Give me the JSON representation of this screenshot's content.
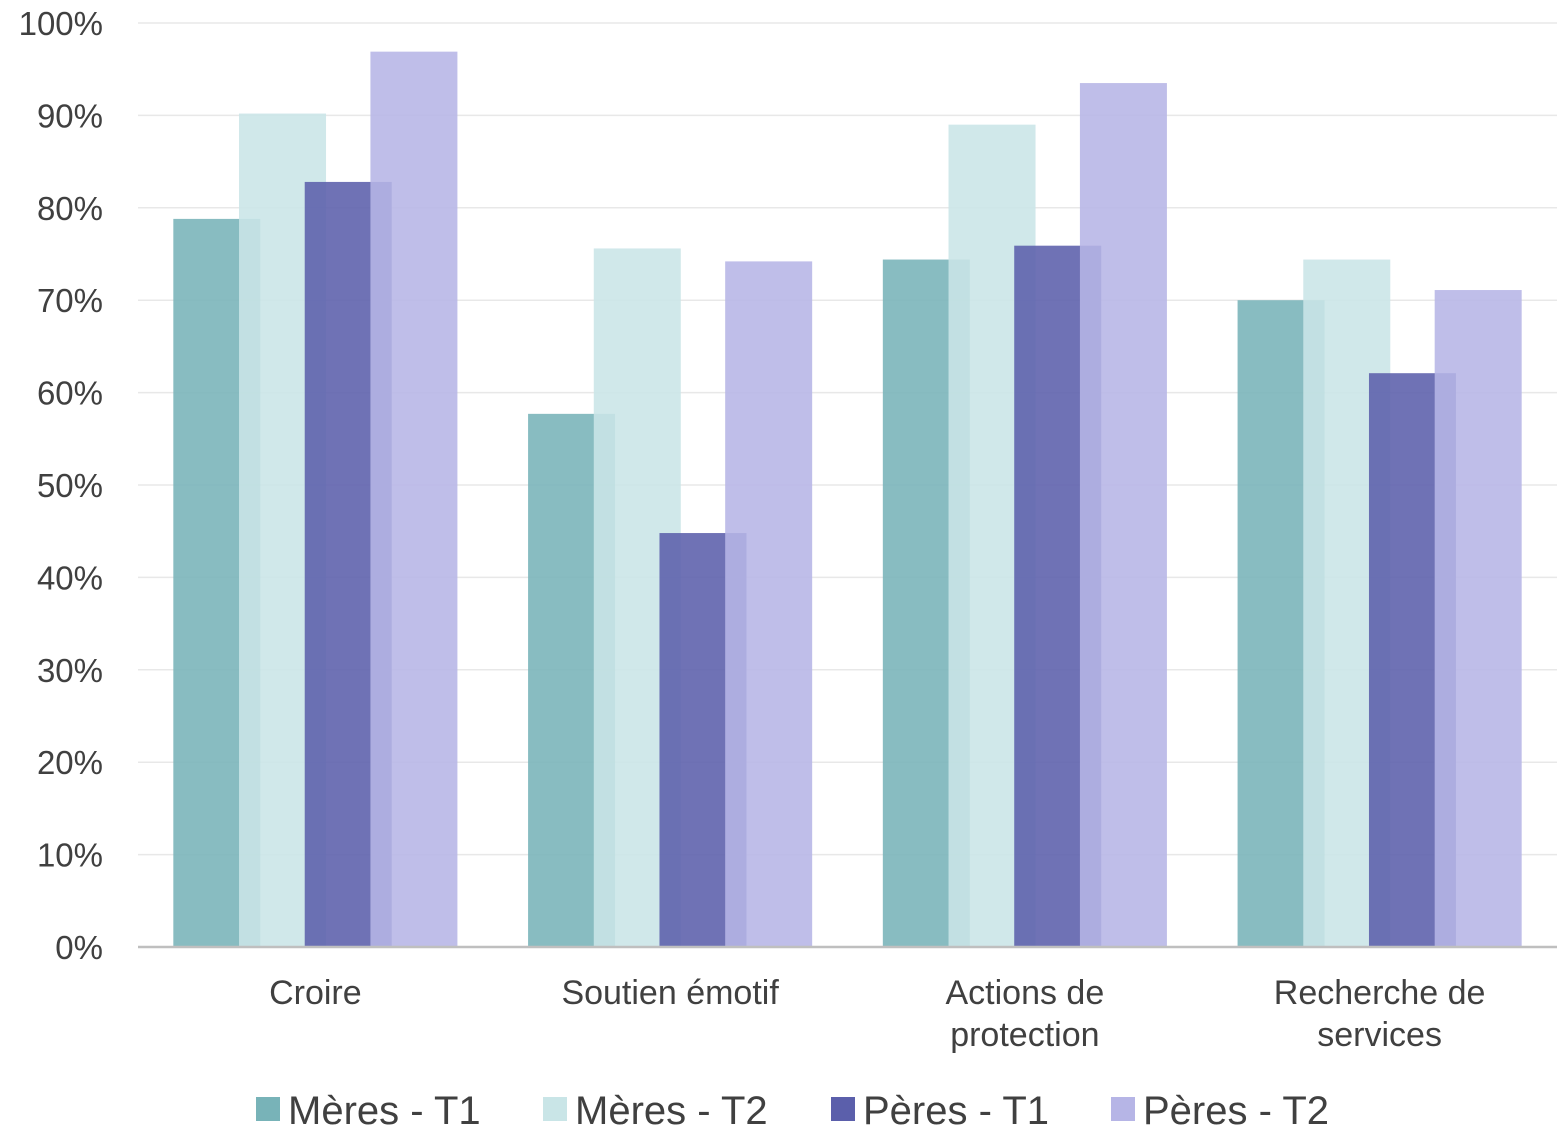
{
  "chart_data": {
    "type": "bar",
    "title": "",
    "xlabel": "",
    "ylabel": "",
    "ylim": [
      0,
      100
    ],
    "y_ticks": [
      "0%",
      "10%",
      "20%",
      "30%",
      "40%",
      "50%",
      "60%",
      "70%",
      "80%",
      "90%",
      "100%"
    ],
    "categories": [
      [
        "Croire"
      ],
      [
        "Soutien émotif"
      ],
      [
        "Actions de",
        "protection"
      ],
      [
        "Recherche de",
        "services"
      ]
    ],
    "series": [
      {
        "name": "Mères - T1",
        "values": [
          78.8,
          57.7,
          74.4,
          70.0
        ],
        "color": "#78B3B8"
      },
      {
        "name": "Mères - T2",
        "values": [
          90.2,
          75.6,
          89.0,
          74.4
        ],
        "color": "#C9E5E7"
      },
      {
        "name": "Pères - T1",
        "values": [
          82.8,
          44.8,
          75.9,
          62.1
        ],
        "color": "#5B5FAB"
      },
      {
        "name": "Pères - T2",
        "values": [
          96.9,
          74.2,
          93.5,
          71.1
        ],
        "color": "#B6B5E6"
      }
    ],
    "grid": true,
    "legend_position": "bottom"
  }
}
